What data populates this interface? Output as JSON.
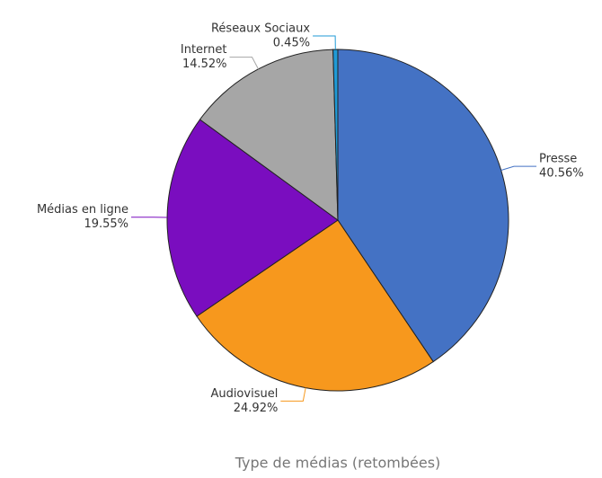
{
  "chart_data": {
    "type": "pie",
    "title": "Type de médias (retombées)",
    "categories": [
      "Presse",
      "Audiovisuel",
      "Médias en ligne",
      "Internet",
      "Réseaux Sociaux"
    ],
    "values": [
      40.56,
      24.92,
      19.55,
      14.52,
      0.45
    ],
    "value_labels": [
      "40.56%",
      "24.92%",
      "19.55%",
      "14.52%",
      "0.45%"
    ],
    "colors": [
      "#4472c4",
      "#f7981d",
      "#7a0dbf",
      "#a6a6a6",
      "#1f9ad6"
    ]
  }
}
